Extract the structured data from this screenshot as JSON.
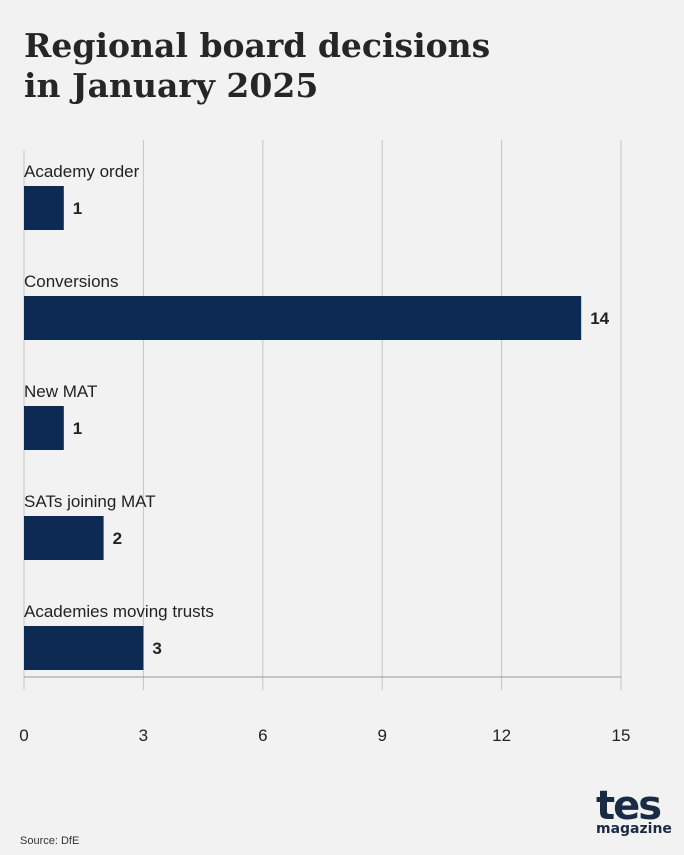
{
  "title_lines": [
    "Regional board decisions",
    "in January 2025"
  ],
  "source": "Source: DfE",
  "logo": {
    "word": "tes",
    "sub": "magazine"
  },
  "colors": {
    "bar": "#0d2b52",
    "grid": "#c4c4c4",
    "background": "#f2f2f2",
    "text": "#222222"
  },
  "chart_data": {
    "type": "bar",
    "orientation": "horizontal",
    "title": "Regional board decisions in January 2025",
    "categories": [
      "Academy order",
      "Conversions",
      "New MAT",
      "SATs joining MAT",
      "Academies moving trusts"
    ],
    "values": [
      1,
      14,
      1,
      2,
      3
    ],
    "xlim": [
      0,
      15
    ],
    "xticks": [
      0,
      3,
      6,
      9,
      12,
      15
    ],
    "grid": true,
    "data_labels": true,
    "legend": "none"
  }
}
